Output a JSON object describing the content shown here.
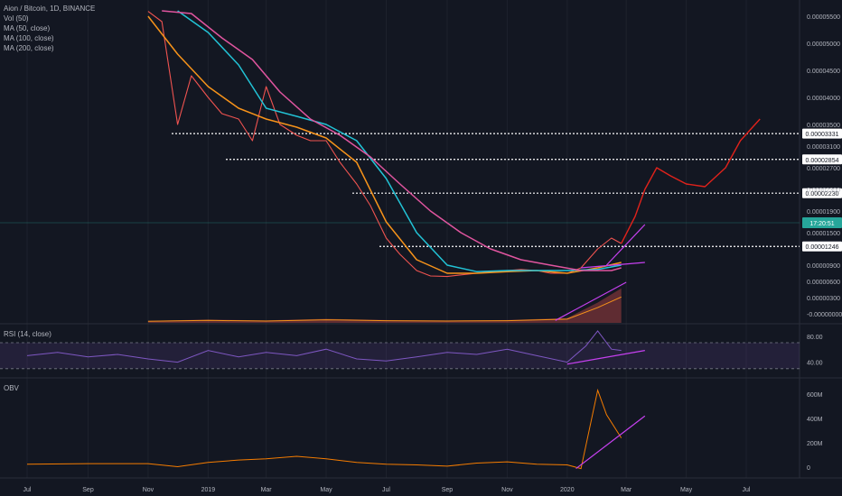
{
  "header": {
    "symbol_line": "Aion / Bitcoin, 1D, BINANCE",
    "legend": [
      "Vol (50)",
      "MA (50, close)",
      "MA (100, close)",
      "MA (200, close)"
    ]
  },
  "rsi_panel": {
    "title": "RSI (14, close)",
    "ticks": [
      "80.00",
      "40.00"
    ],
    "levels": [
      70,
      30
    ]
  },
  "obv_panel": {
    "title": "OBV",
    "ticks": [
      "600M",
      "400M",
      "200M",
      "0"
    ],
    "tick_values": [
      600,
      400,
      200,
      0
    ]
  },
  "colors": {
    "background": "#131722",
    "candle_up": "#26a69a",
    "candle_down": "#ef5350",
    "ma50": "#f7931a",
    "ma100": "#22c3d6",
    "ma200": "#e0559f",
    "rsi": "#7e57c2",
    "obv": "#f57c00",
    "trendline": "#c640f0",
    "projection": "#e0221b",
    "price_tag": "#26a69a"
  },
  "chart_data": [
    {
      "type": "line",
      "title": "Aion / Bitcoin, 1D, BINANCE",
      "x_axis_labels": [
        "Jul",
        "Sep",
        "Nov",
        "2019",
        "Mar",
        "May",
        "Jul",
        "Sep",
        "Nov",
        "2020",
        "Mar",
        "May",
        "Jul"
      ],
      "y_tick_labels": [
        "0.00005500",
        "0.00005000",
        "0.00004500",
        "0.00004000",
        "0.00003500",
        "0.00003100",
        "0.00002700",
        "0.00002300",
        "0.00001900",
        "0.00001500",
        "0.00000900",
        "0.00000600",
        "0.00000300",
        "-0.00000000"
      ],
      "horizontal_levels": [
        {
          "label": "0.00003331",
          "value": 3.331e-05
        },
        {
          "label": "0.00002854",
          "value": 2.854e-05
        },
        {
          "label": "0.00002230",
          "value": 2.23e-05
        },
        {
          "label": "0.00001246",
          "value": 1.246e-05
        }
      ],
      "current_price_tag": "17:20:51",
      "series": [
        {
          "key": "price_close",
          "x": [
            "2018-11-01",
            "2018-11-15",
            "2018-12-01",
            "2018-12-15",
            "2019-01-01",
            "2019-01-15",
            "2019-02-01",
            "2019-02-15",
            "2019-03-01",
            "2019-03-15",
            "2019-04-01",
            "2019-04-15",
            "2019-05-01",
            "2019-05-15",
            "2019-06-01",
            "2019-06-15",
            "2019-07-01",
            "2019-07-15",
            "2019-08-01",
            "2019-08-15",
            "2019-09-01",
            "2019-09-15",
            "2019-10-01",
            "2019-10-15",
            "2019-11-01",
            "2019-11-15",
            "2019-12-01",
            "2019-12-15",
            "2020-01-01",
            "2020-01-15",
            "2020-02-01",
            "2020-02-15",
            "2020-02-25"
          ],
          "y": [
            5.59e-05,
            5.4e-05,
            3.5e-05,
            4.4e-05,
            4e-05,
            3.7e-05,
            3.6e-05,
            3.2e-05,
            4.2e-05,
            3.5e-05,
            3.3e-05,
            3.2e-05,
            3.2e-05,
            2.8e-05,
            2.4e-05,
            2e-05,
            1.4e-05,
            1.1e-05,
            8e-06,
            7e-06,
            6.9e-06,
            7.2e-06,
            7.5e-06,
            7.8e-06,
            8e-06,
            8.2e-06,
            8e-06,
            7.5e-06,
            7.5e-06,
            8.5e-06,
            1.2e-05,
            1.4e-05,
            1.3e-05
          ]
        },
        {
          "key": "ma50",
          "x": [
            "2018-11-01",
            "2018-12-01",
            "2019-01-01",
            "2019-02-01",
            "2019-03-01",
            "2019-04-01",
            "2019-05-01",
            "2019-06-01",
            "2019-07-01",
            "2019-08-01",
            "2019-09-01",
            "2019-10-01",
            "2019-11-01",
            "2019-12-01",
            "2020-01-01",
            "2020-02-01",
            "2020-02-25"
          ],
          "y": [
            5.5e-05,
            4.8e-05,
            4.2e-05,
            3.8e-05,
            3.6e-05,
            3.45e-05,
            3.25e-05,
            2.8e-05,
            1.7e-05,
            1e-05,
            7.5e-06,
            7.5e-06,
            7.8e-06,
            8e-06,
            7.5e-06,
            8.5e-06,
            9.5e-06
          ]
        },
        {
          "key": "ma100",
          "x": [
            "2018-12-01",
            "2019-01-01",
            "2019-02-01",
            "2019-03-01",
            "2019-04-01",
            "2019-05-01",
            "2019-06-01",
            "2019-07-01",
            "2019-08-01",
            "2019-09-01",
            "2019-10-01",
            "2019-11-01",
            "2019-12-01",
            "2020-01-01",
            "2020-02-01",
            "2020-02-25"
          ],
          "y": [
            5.6e-05,
            5.2e-05,
            4.6e-05,
            3.8e-05,
            3.65e-05,
            3.5e-05,
            3.2e-05,
            2.5e-05,
            1.5e-05,
            9e-06,
            7.8e-06,
            8e-06,
            8e-06,
            8e-06,
            8.2e-06,
            9e-06
          ]
        },
        {
          "key": "ma200",
          "x": [
            "2018-11-15",
            "2018-12-15",
            "2019-01-15",
            "2019-02-15",
            "2019-03-15",
            "2019-04-15",
            "2019-05-15",
            "2019-06-15",
            "2019-07-15",
            "2019-08-15",
            "2019-09-15",
            "2019-10-15",
            "2019-11-15",
            "2019-12-15",
            "2020-01-15",
            "2020-02-15",
            "2020-02-25"
          ],
          "y": [
            5.6e-05,
            5.55e-05,
            5.1e-05,
            4.7e-05,
            4.1e-05,
            3.6e-05,
            3.3e-05,
            2.9e-05,
            2.4e-05,
            1.9e-05,
            1.5e-05,
            1.2e-05,
            1e-05,
            9e-06,
            8e-06,
            8e-06,
            8.5e-06
          ]
        },
        {
          "key": "projection",
          "x": [
            "2020-02-25",
            "2020-03-10",
            "2020-03-20",
            "2020-04-01",
            "2020-04-15",
            "2020-05-01",
            "2020-05-20",
            "2020-06-10",
            "2020-06-25",
            "2020-07-15"
          ],
          "y": [
            1.3e-05,
            1.8e-05,
            2.3e-05,
            2.7e-05,
            2.55e-05,
            2.4e-05,
            2.35e-05,
            2.7e-05,
            3.2e-05,
            3.6e-05
          ]
        }
      ]
    },
    {
      "type": "area",
      "title": "Vol (50)",
      "x": [
        "2018-11-01",
        "2019-01-01",
        "2019-03-01",
        "2019-05-01",
        "2019-07-01",
        "2019-09-01",
        "2019-11-01",
        "2020-01-01",
        "2020-02-01",
        "2020-02-25"
      ],
      "y": [
        0.05,
        0.08,
        0.06,
        0.1,
        0.07,
        0.06,
        0.07,
        0.12,
        0.5,
        0.85
      ]
    },
    {
      "type": "line",
      "title": "RSI (14, close)",
      "ylim": [
        20,
        95
      ],
      "x": [
        "2018-07-01",
        "2018-08-01",
        "2018-09-01",
        "2018-10-01",
        "2018-11-01",
        "2018-12-01",
        "2019-01-01",
        "2019-02-01",
        "2019-03-01",
        "2019-04-01",
        "2019-05-01",
        "2019-06-01",
        "2019-07-01",
        "2019-08-01",
        "2019-09-01",
        "2019-10-01",
        "2019-11-01",
        "2019-12-01",
        "2020-01-01",
        "2020-01-20",
        "2020-02-01",
        "2020-02-15",
        "2020-02-25"
      ],
      "y": [
        50,
        55,
        48,
        52,
        45,
        40,
        58,
        48,
        55,
        50,
        60,
        45,
        42,
        48,
        55,
        52,
        60,
        50,
        40,
        65,
        88,
        60,
        58
      ]
    },
    {
      "type": "line",
      "title": "OBV",
      "ylim": [
        -50,
        650
      ],
      "x": [
        "2018-07-01",
        "2018-09-01",
        "2018-11-01",
        "2018-12-01",
        "2019-01-01",
        "2019-02-01",
        "2019-03-01",
        "2019-04-01",
        "2019-05-01",
        "2019-06-01",
        "2019-07-01",
        "2019-08-01",
        "2019-09-01",
        "2019-10-01",
        "2019-11-01",
        "2019-12-01",
        "2020-01-01",
        "2020-01-15",
        "2020-02-01",
        "2020-02-10",
        "2020-02-25"
      ],
      "y": [
        25,
        30,
        30,
        5,
        40,
        60,
        70,
        90,
        70,
        40,
        25,
        20,
        10,
        35,
        45,
        25,
        20,
        -10,
        630,
        430,
        240
      ]
    }
  ]
}
